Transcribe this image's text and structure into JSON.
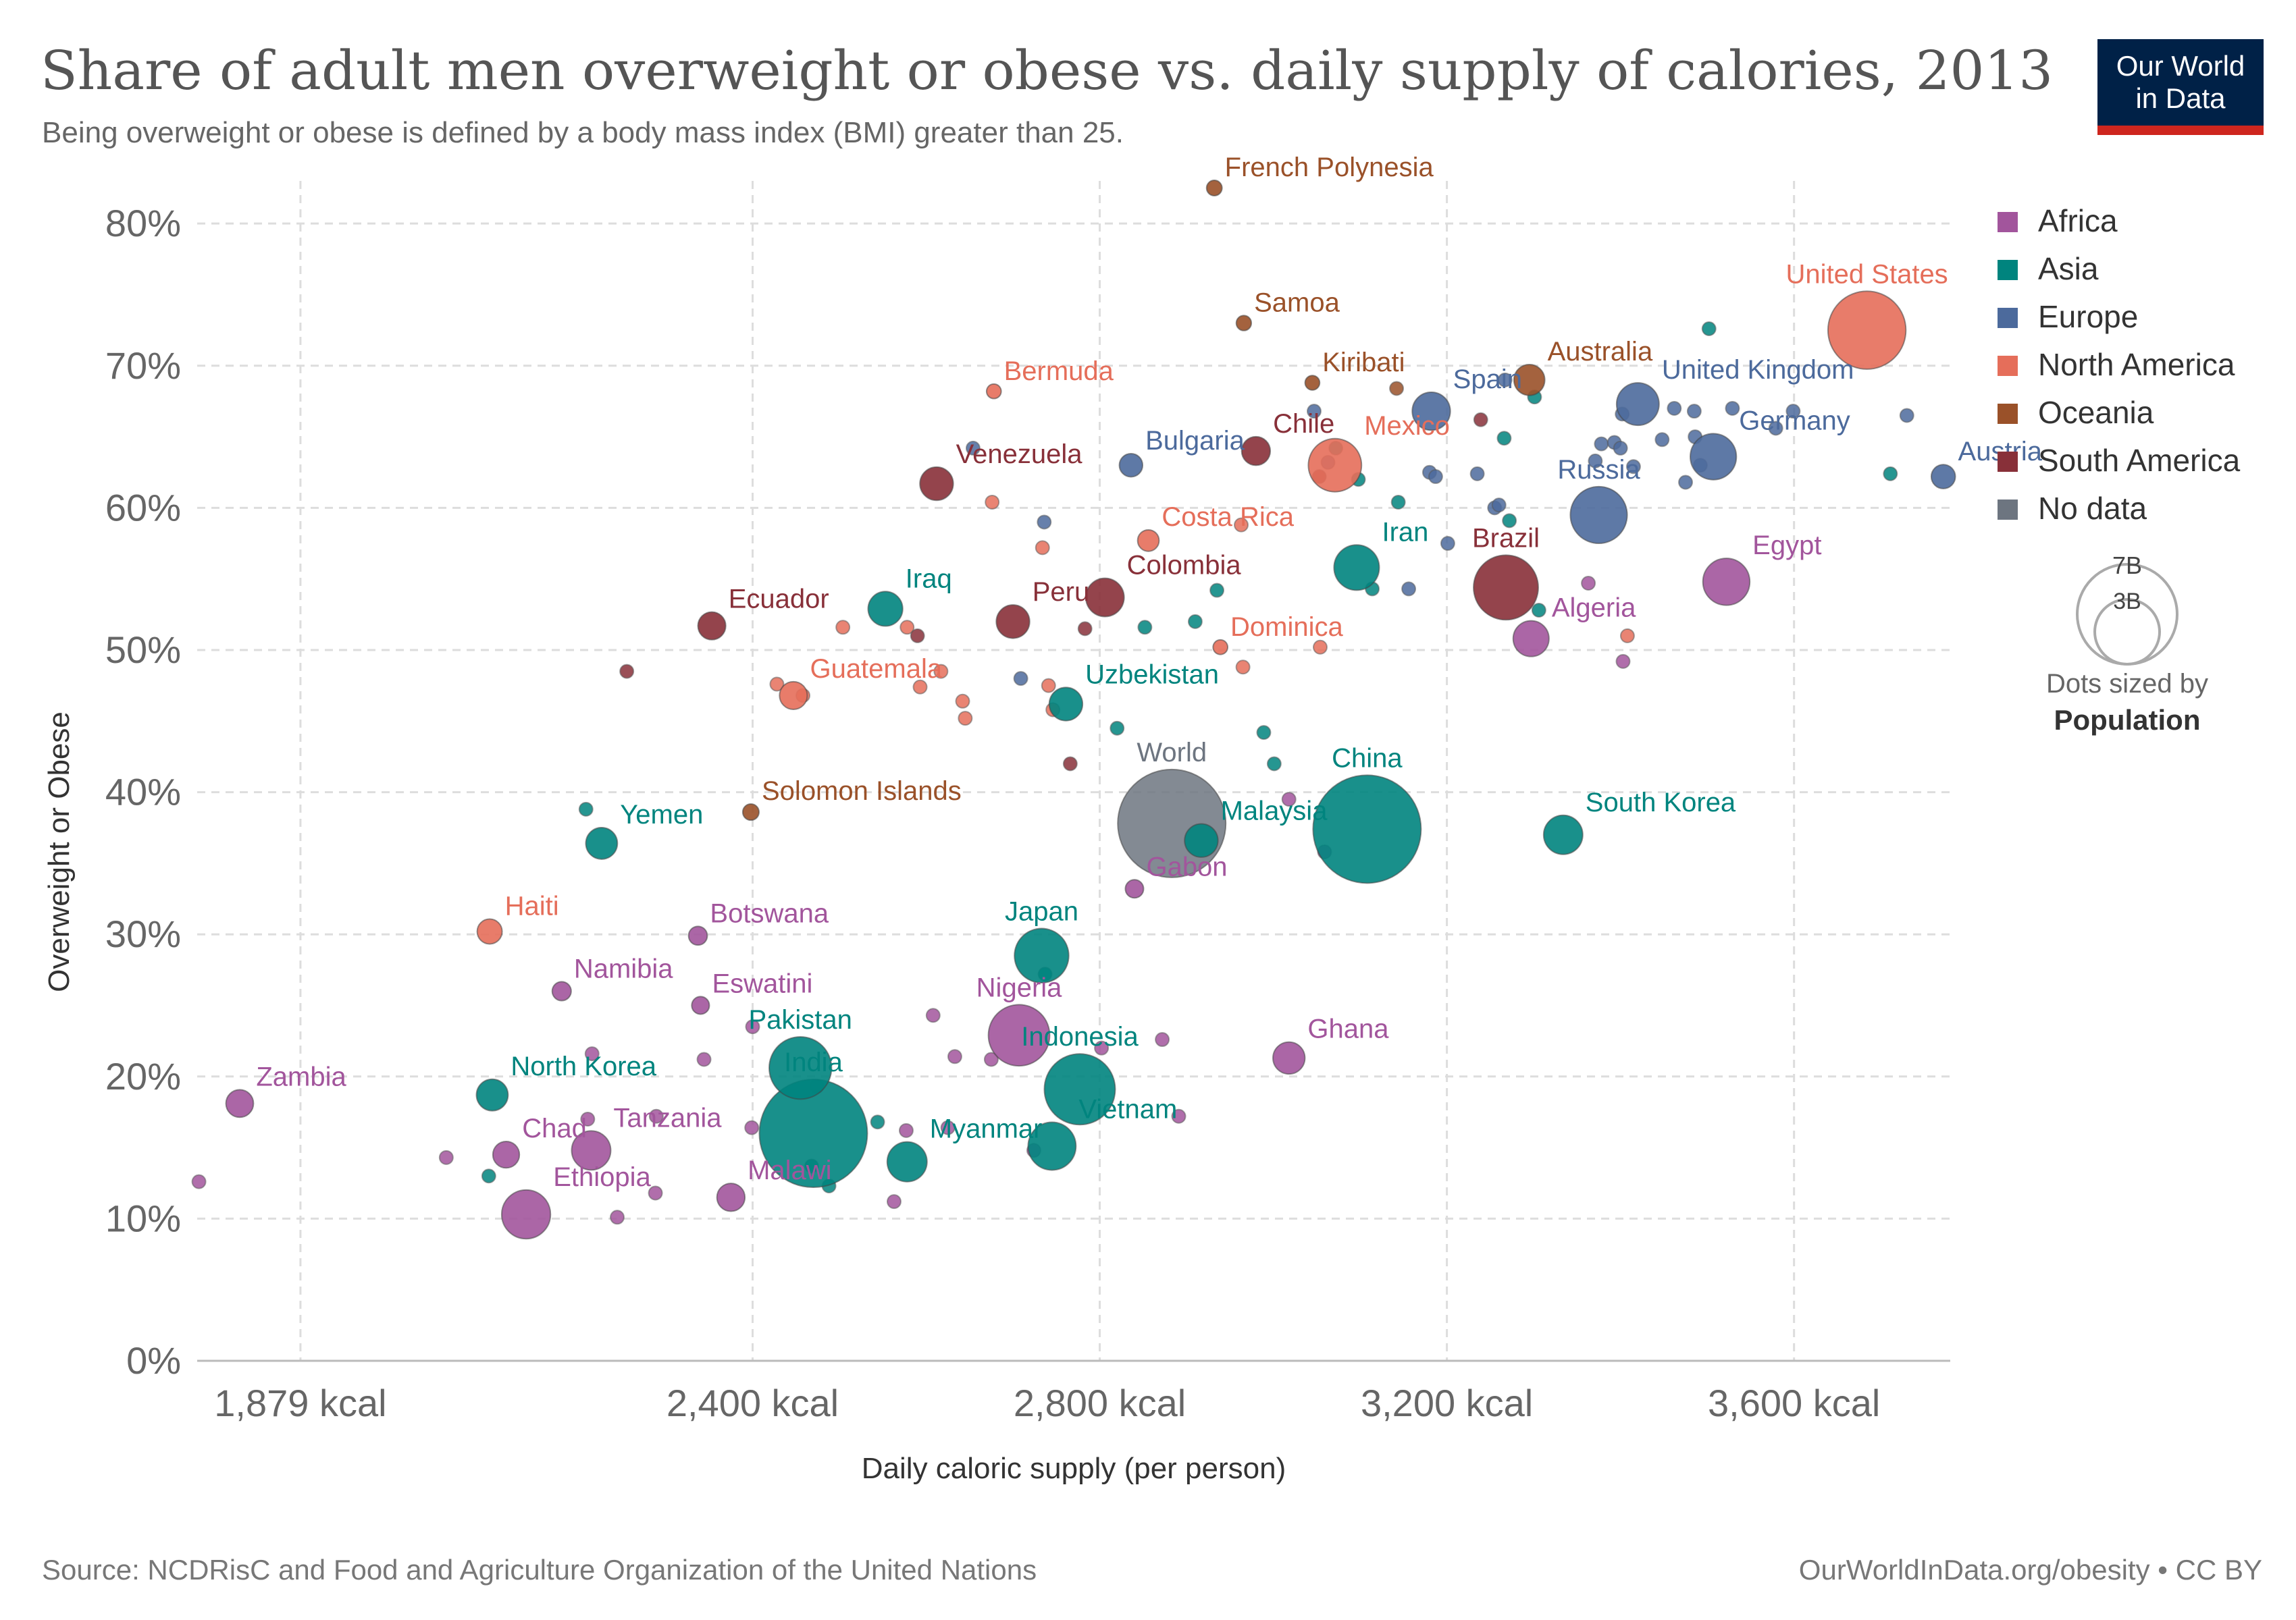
{
  "header": {
    "title": "Share of adult men overweight or obese vs. daily supply of calories, 2013",
    "subtitle": "Being overweight or obese is defined by a body mass index (BMI) greater than 25."
  },
  "logo": {
    "line1": "Our World",
    "line2": "in Data"
  },
  "footer": {
    "source": "Source: NCDRisC and Food and Agriculture Organization of the United Nations",
    "credit": "OurWorldInData.org/obesity • CC BY"
  },
  "legend": {
    "items": [
      {
        "label": "Africa",
        "color": "#a2559c"
      },
      {
        "label": "Asia",
        "color": "#00847e"
      },
      {
        "label": "Europe",
        "color": "#4c6a9c"
      },
      {
        "label": "North America",
        "color": "#e56e5a"
      },
      {
        "label": "Oceania",
        "color": "#9a5129"
      },
      {
        "label": "South America",
        "color": "#883039"
      },
      {
        "label": "No data",
        "color": "#6d7580"
      }
    ],
    "size_legend": {
      "large": "7B",
      "small": "3B",
      "note": "Dots sized by",
      "metric": "Population"
    }
  },
  "chart_data": {
    "type": "scatter",
    "title": "Share of adult men overweight or obese vs. daily supply of calories, 2013",
    "xlabel": "Daily caloric supply (per person)",
    "ylabel": "Overweight or Obese",
    "x_ticks": [
      {
        "value": 1879,
        "label": "1,879 kcal"
      },
      {
        "value": 2400,
        "label": "2,400 kcal"
      },
      {
        "value": 2800,
        "label": "2,800 kcal"
      },
      {
        "value": 3200,
        "label": "3,200 kcal"
      },
      {
        "value": 3600,
        "label": "3,600 kcal"
      }
    ],
    "y_ticks": [
      {
        "value": 0,
        "label": "0%"
      },
      {
        "value": 10,
        "label": "10%"
      },
      {
        "value": 20,
        "label": "20%"
      },
      {
        "value": 30,
        "label": "30%"
      },
      {
        "value": 40,
        "label": "40%"
      },
      {
        "value": 50,
        "label": "50%"
      },
      {
        "value": 60,
        "label": "60%"
      },
      {
        "value": 70,
        "label": "70%"
      },
      {
        "value": 80,
        "label": "80%"
      }
    ],
    "xlim": [
      1760,
      3780
    ],
    "ylim": [
      0,
      83
    ],
    "grid": true,
    "region_colors": {
      "Africa": "#a2559c",
      "Asia": "#00847e",
      "Europe": "#4c6a9c",
      "North America": "#e56e5a",
      "Oceania": "#9a5129",
      "South America": "#883039",
      "No data": "#6d7580"
    },
    "points": [
      {
        "label": "French Polynesia",
        "x": 2932,
        "y": 82.5,
        "region": "Oceania",
        "pop": 0.3
      },
      {
        "label": "Samoa",
        "x": 2966,
        "y": 73.0,
        "region": "Oceania",
        "pop": 0.2
      },
      {
        "label": "United States",
        "x": 3684,
        "y": 72.5,
        "region": "North America",
        "pop": 316
      },
      {
        "label": "Australia",
        "x": 3295,
        "y": 69.0,
        "region": "Oceania",
        "pop": 23
      },
      {
        "label": "Kiribati",
        "x": 3045,
        "y": 68.8,
        "region": "Oceania",
        "pop": 0.1
      },
      {
        "label": "Bermuda",
        "x": 2678,
        "y": 68.2,
        "region": "North America",
        "pop": 0.1
      },
      {
        "label": "Spain",
        "x": 3182,
        "y": 66.8,
        "region": "Europe",
        "pop": 46
      },
      {
        "label": "United Kingdom",
        "x": 3420,
        "y": 67.3,
        "region": "Europe",
        "pop": 64
      },
      {
        "label": "Germany",
        "x": 3507,
        "y": 63.6,
        "region": "Europe",
        "pop": 81
      },
      {
        "label": "Mexico",
        "x": 3071,
        "y": 63.0,
        "region": "North America",
        "pop": 120
      },
      {
        "label": "Chile",
        "x": 2980,
        "y": 64.0,
        "region": "South America",
        "pop": 17.5
      },
      {
        "label": "Bulgaria",
        "x": 2836,
        "y": 63.0,
        "region": "Europe",
        "pop": 7.3
      },
      {
        "label": "Austria",
        "x": 3772,
        "y": 62.2,
        "region": "Europe",
        "pop": 8.5
      },
      {
        "label": "Venezuela",
        "x": 2612,
        "y": 61.7,
        "region": "South America",
        "pop": 30
      },
      {
        "label": "Russia",
        "x": 3375,
        "y": 59.5,
        "region": "Europe",
        "pop": 143
      },
      {
        "label": "Costa Rica",
        "x": 2856,
        "y": 57.7,
        "region": "North America",
        "pop": 4.8
      },
      {
        "label": "Iran",
        "x": 3096,
        "y": 55.8,
        "region": "Asia",
        "pop": 77
      },
      {
        "label": "Brazil",
        "x": 3268,
        "y": 54.4,
        "region": "South America",
        "pop": 200
      },
      {
        "label": "Egypt",
        "x": 3522,
        "y": 54.8,
        "region": "Africa",
        "pop": 85
      },
      {
        "label": "Colombia",
        "x": 2806,
        "y": 53.7,
        "region": "South America",
        "pop": 47
      },
      {
        "label": "Iraq",
        "x": 2553,
        "y": 52.9,
        "region": "Asia",
        "pop": 34
      },
      {
        "label": "Ecuador",
        "x": 2353,
        "y": 51.7,
        "region": "South America",
        "pop": 15.6
      },
      {
        "label": "Peru",
        "x": 2700,
        "y": 52.0,
        "region": "South America",
        "pop": 30
      },
      {
        "label": "Algeria",
        "x": 3297,
        "y": 50.8,
        "region": "Africa",
        "pop": 38
      },
      {
        "label": "Dominica",
        "x": 2939,
        "y": 50.2,
        "region": "North America",
        "pop": 0.1
      },
      {
        "label": "Guatemala",
        "x": 2447,
        "y": 46.8,
        "region": "North America",
        "pop": 15.5
      },
      {
        "label": "Uzbekistan",
        "x": 2761,
        "y": 46.2,
        "region": "Asia",
        "pop": 30
      },
      {
        "label": "World",
        "x": 2883,
        "y": 37.8,
        "region": "No data",
        "pop": 7200
      },
      {
        "label": "China",
        "x": 3108,
        "y": 37.4,
        "region": "Asia",
        "pop": 1360
      },
      {
        "label": "Malaysia",
        "x": 2917,
        "y": 36.6,
        "region": "Asia",
        "pop": 30
      },
      {
        "label": "South Korea",
        "x": 3334,
        "y": 37.0,
        "region": "Asia",
        "pop": 50
      },
      {
        "label": "Solomon Islands",
        "x": 2398,
        "y": 38.6,
        "region": "Oceania",
        "pop": 0.6
      },
      {
        "label": "Yemen",
        "x": 2226,
        "y": 36.4,
        "region": "Asia",
        "pop": 25
      },
      {
        "label": "Gabon",
        "x": 2840,
        "y": 33.2,
        "region": "Africa",
        "pop": 1.7
      },
      {
        "label": "Haiti",
        "x": 2097,
        "y": 30.2,
        "region": "North America",
        "pop": 10
      },
      {
        "label": "Botswana",
        "x": 2337,
        "y": 29.9,
        "region": "Africa",
        "pop": 2.1
      },
      {
        "label": "Japan",
        "x": 2733,
        "y": 28.5,
        "region": "Asia",
        "pop": 127
      },
      {
        "label": "Namibia",
        "x": 2180,
        "y": 26.0,
        "region": "Africa",
        "pop": 2.3
      },
      {
        "label": "Eswatini",
        "x": 2340,
        "y": 25.0,
        "region": "Africa",
        "pop": 1.3
      },
      {
        "label": "Nigeria",
        "x": 2707,
        "y": 22.9,
        "region": "Africa",
        "pop": 174
      },
      {
        "label": "Ghana",
        "x": 3018,
        "y": 21.3,
        "region": "Africa",
        "pop": 26
      },
      {
        "label": "Pakistan",
        "x": 2455,
        "y": 20.6,
        "region": "Asia",
        "pop": 182
      },
      {
        "label": "Indonesia",
        "x": 2777,
        "y": 19.1,
        "region": "Asia",
        "pop": 251
      },
      {
        "label": "North Korea",
        "x": 2100,
        "y": 18.7,
        "region": "Asia",
        "pop": 25
      },
      {
        "label": "Zambia",
        "x": 1809,
        "y": 18.1,
        "region": "Africa",
        "pop": 15
      },
      {
        "label": "India",
        "x": 2470,
        "y": 16.0,
        "region": "Asia",
        "pop": 1280
      },
      {
        "label": "Vietnam",
        "x": 2745,
        "y": 15.1,
        "region": "Asia",
        "pop": 90
      },
      {
        "label": "Myanmar",
        "x": 2578,
        "y": 14.0,
        "region": "Asia",
        "pop": 53
      },
      {
        "label": "Tanzania",
        "x": 2214,
        "y": 14.8,
        "region": "Africa",
        "pop": 50
      },
      {
        "label": "Chad",
        "x": 2116,
        "y": 14.5,
        "region": "Africa",
        "pop": 13
      },
      {
        "label": "Malawi",
        "x": 2375,
        "y": 11.5,
        "region": "Africa",
        "pop": 16
      },
      {
        "label": "Ethiopia",
        "x": 2139,
        "y": 10.3,
        "region": "Africa",
        "pop": 95
      }
    ],
    "unlabeled_points": [
      {
        "x": 1762,
        "y": 12.6,
        "region": "Africa"
      },
      {
        "x": 2047,
        "y": 14.3,
        "region": "Africa"
      },
      {
        "x": 2096,
        "y": 13.0,
        "region": "Asia"
      },
      {
        "x": 2244,
        "y": 10.1,
        "region": "Africa"
      },
      {
        "x": 2288,
        "y": 11.8,
        "region": "Africa"
      },
      {
        "x": 2210,
        "y": 17.0,
        "region": "Africa"
      },
      {
        "x": 2289,
        "y": 17.2,
        "region": "Africa"
      },
      {
        "x": 2215,
        "y": 21.6,
        "region": "Africa"
      },
      {
        "x": 2344,
        "y": 21.2,
        "region": "Africa"
      },
      {
        "x": 2399,
        "y": 16.4,
        "region": "Africa"
      },
      {
        "x": 2400,
        "y": 23.5,
        "region": "Africa"
      },
      {
        "x": 2468,
        "y": 13.7,
        "region": "Asia"
      },
      {
        "x": 2488,
        "y": 12.3,
        "region": "Asia"
      },
      {
        "x": 2474,
        "y": 19.3,
        "region": "Africa"
      },
      {
        "x": 2544,
        "y": 16.8,
        "region": "Asia"
      },
      {
        "x": 2563,
        "y": 11.2,
        "region": "Africa"
      },
      {
        "x": 2577,
        "y": 16.2,
        "region": "Africa"
      },
      {
        "x": 2608,
        "y": 24.3,
        "region": "Africa"
      },
      {
        "x": 2625,
        "y": 16.4,
        "region": "Africa"
      },
      {
        "x": 2633,
        "y": 21.4,
        "region": "Africa"
      },
      {
        "x": 2675,
        "y": 21.2,
        "region": "Africa"
      },
      {
        "x": 2724,
        "y": 14.8,
        "region": "Africa"
      },
      {
        "x": 2737,
        "y": 27.2,
        "region": "Asia"
      },
      {
        "x": 2802,
        "y": 22.0,
        "region": "Africa"
      },
      {
        "x": 2872,
        "y": 22.6,
        "region": "Africa"
      },
      {
        "x": 2891,
        "y": 17.2,
        "region": "Africa"
      },
      {
        "x": 3059,
        "y": 35.8,
        "region": "Africa"
      },
      {
        "x": 3018,
        "y": 39.5,
        "region": "Africa"
      },
      {
        "x": 2989,
        "y": 44.2,
        "region": "Asia"
      },
      {
        "x": 3001,
        "y": 42.0,
        "region": "Asia"
      },
      {
        "x": 2766,
        "y": 42.0,
        "region": "South America"
      },
      {
        "x": 2820,
        "y": 44.5,
        "region": "Asia"
      },
      {
        "x": 2852,
        "y": 51.6,
        "region": "Asia"
      },
      {
        "x": 2910,
        "y": 52.0,
        "region": "Asia"
      },
      {
        "x": 2935,
        "y": 54.2,
        "region": "Asia"
      },
      {
        "x": 2965,
        "y": 48.8,
        "region": "North America"
      },
      {
        "x": 3054,
        "y": 50.2,
        "region": "North America"
      },
      {
        "x": 2709,
        "y": 48.0,
        "region": "Europe"
      },
      {
        "x": 2741,
        "y": 47.5,
        "region": "North America"
      },
      {
        "x": 2746,
        "y": 45.8,
        "region": "North America"
      },
      {
        "x": 2783,
        "y": 51.5,
        "region": "South America"
      },
      {
        "x": 2734,
        "y": 57.2,
        "region": "North America"
      },
      {
        "x": 2736,
        "y": 59.0,
        "region": "Europe"
      },
      {
        "x": 2676,
        "y": 60.4,
        "region": "North America"
      },
      {
        "x": 2654,
        "y": 64.2,
        "region": "Europe"
      },
      {
        "x": 2642,
        "y": 46.4,
        "region": "North America"
      },
      {
        "x": 2645,
        "y": 45.2,
        "region": "North America"
      },
      {
        "x": 2617,
        "y": 48.5,
        "region": "North America"
      },
      {
        "x": 2593,
        "y": 47.4,
        "region": "North America"
      },
      {
        "x": 2578,
        "y": 51.6,
        "region": "North America"
      },
      {
        "x": 2590,
        "y": 51.0,
        "region": "South America"
      },
      {
        "x": 2504,
        "y": 51.6,
        "region": "North America"
      },
      {
        "x": 2428,
        "y": 47.6,
        "region": "North America"
      },
      {
        "x": 2458,
        "y": 46.8,
        "region": "North America"
      },
      {
        "x": 2208,
        "y": 38.8,
        "region": "Asia"
      },
      {
        "x": 2255,
        "y": 48.5,
        "region": "South America"
      },
      {
        "x": 3072,
        "y": 64.2,
        "region": "Asia"
      },
      {
        "x": 3047,
        "y": 66.8,
        "region": "Europe"
      },
      {
        "x": 3063,
        "y": 63.2,
        "region": "Europe"
      },
      {
        "x": 3053,
        "y": 62.2,
        "region": "South America"
      },
      {
        "x": 3098,
        "y": 62.0,
        "region": "Asia"
      },
      {
        "x": 3142,
        "y": 68.4,
        "region": "Oceania"
      },
      {
        "x": 3144,
        "y": 60.4,
        "region": "Asia"
      },
      {
        "x": 3114,
        "y": 54.3,
        "region": "Asia"
      },
      {
        "x": 3156,
        "y": 54.3,
        "region": "Europe"
      },
      {
        "x": 3180,
        "y": 62.5,
        "region": "Europe"
      },
      {
        "x": 3187,
        "y": 62.2,
        "region": "Europe"
      },
      {
        "x": 3201,
        "y": 57.5,
        "region": "Europe"
      },
      {
        "x": 3235,
        "y": 62.4,
        "region": "Europe"
      },
      {
        "x": 3239,
        "y": 66.2,
        "region": "South America"
      },
      {
        "x": 3255,
        "y": 60.0,
        "region": "Europe"
      },
      {
        "x": 3260,
        "y": 60.2,
        "region": "Europe"
      },
      {
        "x": 3272,
        "y": 59.1,
        "region": "Asia"
      },
      {
        "x": 3266,
        "y": 64.9,
        "region": "Asia"
      },
      {
        "x": 3267,
        "y": 69.0,
        "region": "Europe"
      },
      {
        "x": 3301,
        "y": 67.8,
        "region": "Asia"
      },
      {
        "x": 3306,
        "y": 52.8,
        "region": "Asia"
      },
      {
        "x": 3363,
        "y": 54.7,
        "region": "Africa"
      },
      {
        "x": 3371,
        "y": 63.3,
        "region": "Europe"
      },
      {
        "x": 3378,
        "y": 64.5,
        "region": "Europe"
      },
      {
        "x": 3393,
        "y": 64.6,
        "region": "Europe"
      },
      {
        "x": 3400,
        "y": 64.2,
        "region": "Europe"
      },
      {
        "x": 3402,
        "y": 66.6,
        "region": "Europe"
      },
      {
        "x": 3415,
        "y": 62.9,
        "region": "Europe"
      },
      {
        "x": 3448,
        "y": 64.8,
        "region": "Europe"
      },
      {
        "x": 3462,
        "y": 67.0,
        "region": "Europe"
      },
      {
        "x": 3475,
        "y": 61.8,
        "region": "Europe"
      },
      {
        "x": 3485,
        "y": 66.8,
        "region": "Europe"
      },
      {
        "x": 3486,
        "y": 65.0,
        "region": "Europe"
      },
      {
        "x": 3492,
        "y": 63.0,
        "region": "Europe"
      },
      {
        "x": 3502,
        "y": 72.6,
        "region": "Asia"
      },
      {
        "x": 3529,
        "y": 67.0,
        "region": "Europe"
      },
      {
        "x": 3579,
        "y": 65.6,
        "region": "Europe"
      },
      {
        "x": 3599,
        "y": 66.8,
        "region": "Europe"
      },
      {
        "x": 3711,
        "y": 62.4,
        "region": "Asia"
      },
      {
        "x": 3730,
        "y": 66.5,
        "region": "Europe"
      },
      {
        "x": 3403,
        "y": 49.2,
        "region": "Africa"
      },
      {
        "x": 3408,
        "y": 51.0,
        "region": "North America"
      },
      {
        "x": 2963,
        "y": 58.8,
        "region": "North America"
      }
    ]
  }
}
